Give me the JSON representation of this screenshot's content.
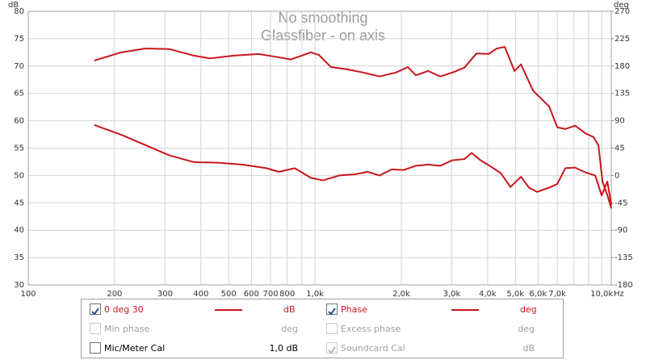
{
  "chart_data": {
    "type": "line",
    "title": "No smoothing",
    "subtitle": "Glassfiber - on axis",
    "xlabel": "Hz",
    "ylabel": "dB",
    "y2label": "deg",
    "xscale": "log",
    "xlim": [
      100,
      10800
    ],
    "xticks": [
      100,
      200,
      300,
      400,
      500,
      600,
      700,
      800,
      {
        "value": 1000,
        "label": "1,0k"
      },
      {
        "value": 2000,
        "label": "2,0k"
      },
      {
        "value": 3000,
        "label": "3,0k"
      },
      {
        "value": 4000,
        "label": "4,0k"
      },
      {
        "value": 5000,
        "label": "5,0k"
      },
      {
        "value": 6000,
        "label": "6,0k"
      },
      {
        "value": 7000,
        "label": "7,0k"
      },
      {
        "value": 10000,
        "label": "10,0k"
      }
    ],
    "xgrid_minor": [
      900,
      8000,
      9000
    ],
    "ylim": [
      30,
      80
    ],
    "yticks": [
      30,
      35,
      40,
      45,
      50,
      55,
      60,
      65,
      70,
      75,
      80
    ],
    "y2lim": [
      -180,
      270
    ],
    "y2ticks": [
      -180,
      -135,
      -90,
      -45,
      0,
      45,
      90,
      135,
      180,
      225,
      270
    ],
    "grid": true,
    "series": [
      {
        "name": "0 deg 30",
        "unit": "dB",
        "color": "#c8161d",
        "checked": true,
        "x": [
          170,
          211,
          256,
          311,
          378,
          430,
          523,
          635,
          747,
          823,
          968,
          1033,
          1138,
          1296,
          1476,
          1681,
          1912,
          2108,
          2249,
          2480,
          2734,
          3013,
          3320,
          3660,
          4034,
          4303,
          4592,
          4963,
          5229,
          5763,
          6561,
          6999,
          7470,
          8072,
          8784,
          9372,
          9744,
          10066,
          10464,
          10810
        ],
        "values": [
          71.0,
          72.5,
          73.2,
          73.1,
          71.9,
          71.4,
          71.9,
          72.2,
          71.6,
          71.2,
          72.5,
          72.0,
          69.8,
          69.4,
          68.8,
          68.1,
          68.8,
          69.8,
          68.3,
          69.1,
          68.1,
          68.8,
          69.7,
          72.3,
          72.2,
          73.2,
          73.5,
          69.1,
          70.3,
          65.5,
          62.6,
          58.8,
          58.5,
          59.1,
          57.7,
          57.0,
          55.5,
          48.9,
          46.4,
          44.0
        ]
      },
      {
        "name": "Phase",
        "unit": "deg",
        "color": "#c8161d",
        "checked": true,
        "axis": "y2",
        "x": [
          170,
          211,
          256,
          311,
          378,
          459,
          558,
          678,
          747,
          850,
          968,
          1067,
          1215,
          1383,
          1525,
          1681,
          1852,
          2041,
          2249,
          2480,
          2734,
          3013,
          3320,
          3520,
          3780,
          4034,
          4445,
          4806,
          5229,
          5580,
          5953,
          6561,
          6999,
          7470,
          8072,
          8784,
          9495,
          10000,
          10464,
          10810
        ],
        "values": [
          83,
          67,
          50,
          33,
          22,
          21,
          18,
          12,
          6,
          12,
          -4,
          -8,
          0,
          2,
          6,
          0,
          10,
          9,
          16,
          18,
          16,
          25,
          27,
          37,
          25,
          17,
          4,
          -19,
          -2,
          -20,
          -27,
          -20,
          -14,
          12,
          13,
          5,
          0,
          -33,
          -10,
          -49
        ]
      }
    ]
  },
  "panel": {
    "items": [
      {
        "label": "Min phase",
        "unit": "deg",
        "checked": false,
        "enabled": false
      },
      {
        "label": "Excess phase",
        "unit": "deg",
        "checked": false,
        "enabled": false
      },
      {
        "label": "Mic/Meter Cal",
        "unit": "1,0 dB",
        "checked": false,
        "enabled": true
      },
      {
        "label": "Soundcard Cal",
        "unit": "dB",
        "checked": true,
        "enabled": false
      }
    ]
  }
}
